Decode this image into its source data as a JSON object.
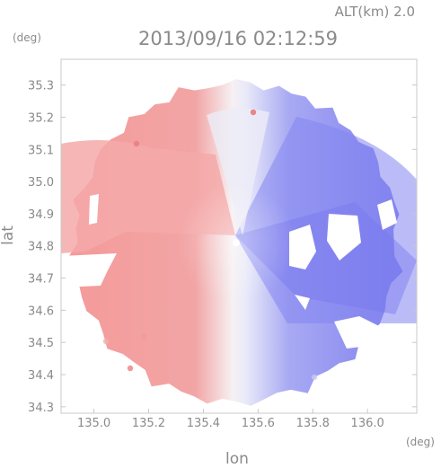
{
  "header": {
    "altitude_label": "ALT(km) 2.0",
    "timestamp": "2013/09/16 02:12:59"
  },
  "chart_data": {
    "type": "heatmap",
    "description_field": "radial velocity PPI",
    "xlabel": "lon",
    "ylabel": "lat",
    "x_unit": "(deg)",
    "y_unit": "(deg)",
    "xlim": [
      134.88,
      136.18
    ],
    "ylim": [
      34.28,
      35.38
    ],
    "x_ticks": [
      "135.0",
      "135.2",
      "135.4",
      "135.6",
      "135.8",
      "136.0"
    ],
    "y_ticks": [
      "34.3",
      "34.4",
      "34.5",
      "34.6",
      "34.7",
      "34.8",
      "34.9",
      "35.0",
      "35.1",
      "35.2",
      "35.3"
    ],
    "radar_center": {
      "lon": 135.52,
      "lat": 34.81
    },
    "coverage_radius_deg": 0.62,
    "colors": {
      "approaching": "#7f7ff2",
      "receding": "#f48888",
      "neutral": "#f4f4f6",
      "frame": "#c8c8c8",
      "text": "#8a8a8a"
    }
  }
}
